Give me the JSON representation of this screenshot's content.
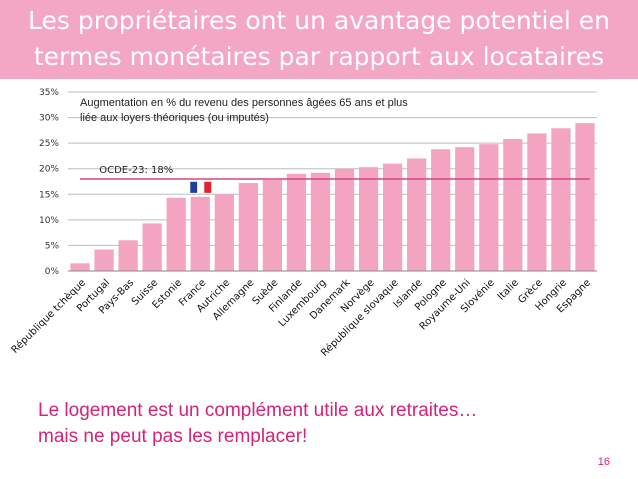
{
  "slide": {
    "title_line1": "Les propriétaires ont un avantage potentiel en",
    "title_line2": "termes monétaires par rapport aux locataires",
    "footer_line1": "Le logement est un complément utile aux retraites…",
    "footer_line2": "mais ne peut pas les remplacer!",
    "page_number": "16",
    "title_bg_color": "#f4a7c4",
    "footer_color": "#d6227a"
  },
  "chart_data": {
    "type": "bar",
    "annotation_line1": "Augmentation en % du revenu des personnes âgées 65 ans et plus",
    "annotation_line2": "liée aux loyers théoriques (ou imputés)",
    "categories": [
      "République tchèque",
      "Portugal",
      "Pays-Bas",
      "Suisse",
      "Estonie",
      "France",
      "Autriche",
      "Allemagne",
      "Suède",
      "Finlande",
      "Luxembourg",
      "Danemark",
      "Norvège",
      "République slovaque",
      "Islande",
      "Pologne",
      "Royaume-Uni",
      "Slovénie",
      "Italie",
      "Grèce",
      "Hongrie",
      "Espagne"
    ],
    "values": [
      1.5,
      4.2,
      6.0,
      9.3,
      14.3,
      14.5,
      15.0,
      17.2,
      17.8,
      19.0,
      19.2,
      20.0,
      20.3,
      21.0,
      22.0,
      23.8,
      24.2,
      24.8,
      25.8,
      26.9,
      27.9,
      28.9
    ],
    "ylim": [
      0,
      35
    ],
    "yticks": [
      0,
      5,
      10,
      15,
      20,
      25,
      30,
      35
    ],
    "ytick_labels": [
      "0%",
      "5%",
      "10%",
      "15%",
      "20%",
      "25%",
      "30%",
      "35%"
    ],
    "reference_line": {
      "label": "OCDE-23: 18%",
      "value": 18,
      "color": "#d9457a"
    },
    "flag_category": "France",
    "bar_color": "#f2a4c0",
    "grid": true,
    "legend": "none"
  }
}
